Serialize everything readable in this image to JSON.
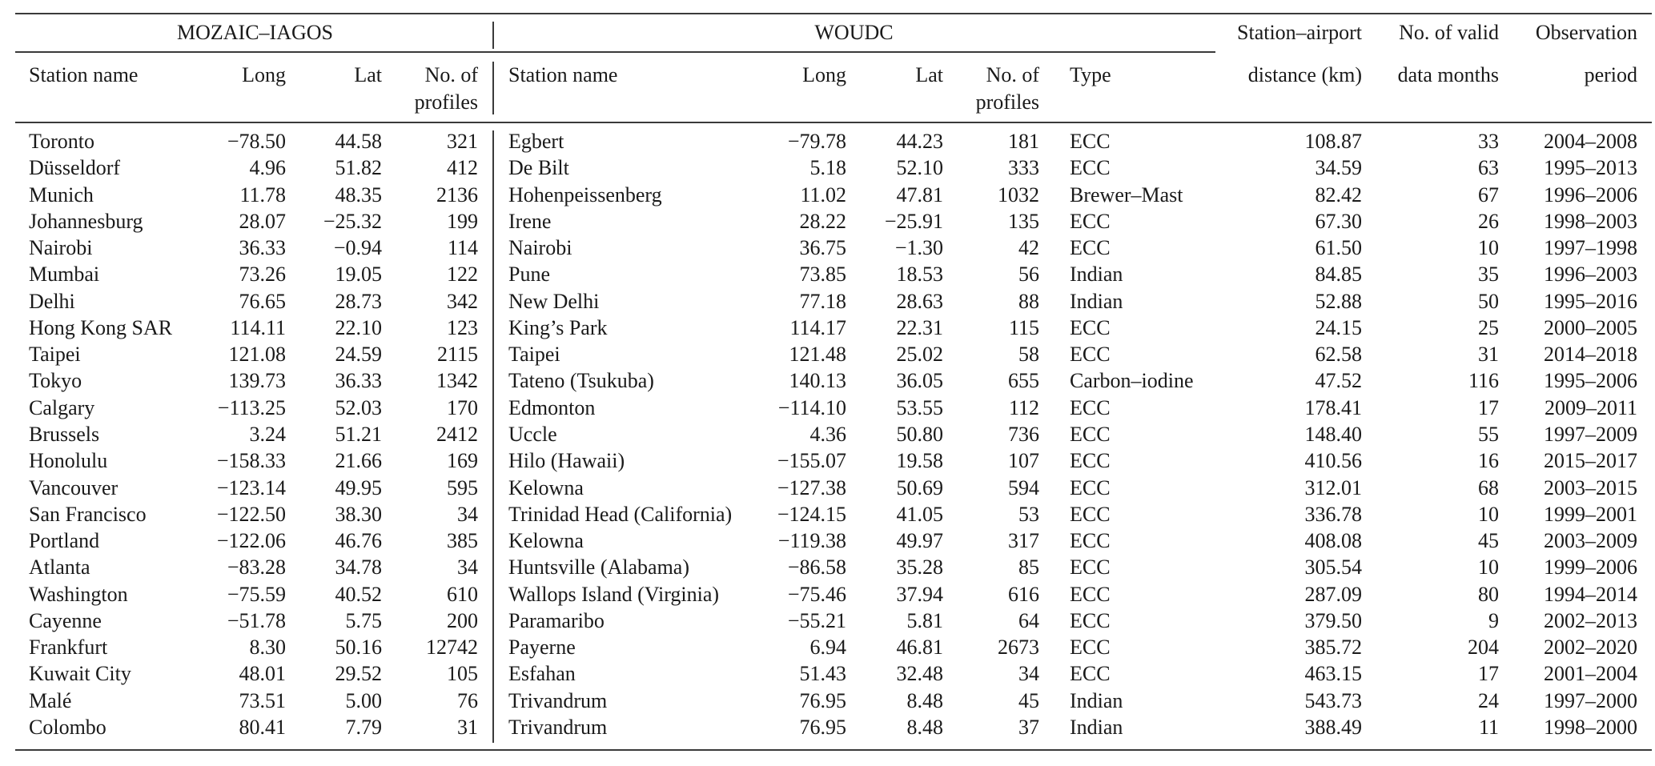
{
  "groups": {
    "mozaic": "MOZAIC–IAGOS",
    "woudc": "WOUDC"
  },
  "headers": {
    "mozaic_station": "Station name",
    "mozaic_long": "Long",
    "mozaic_lat": "Lat",
    "mozaic_profiles_1": "No. of",
    "mozaic_profiles_2": "profiles",
    "woudc_station": "Station name",
    "woudc_long": "Long",
    "woudc_lat": "Lat",
    "woudc_profiles_1": "No. of",
    "woudc_profiles_2": "profiles",
    "woudc_type": "Type",
    "distance_1": "Station–airport",
    "distance_2": "distance (km)",
    "months_1": "No. of valid",
    "months_2": "data months",
    "period_1": "Observation",
    "period_2": "period"
  },
  "rows": [
    [
      "Toronto",
      "−78.50",
      "44.58",
      "321",
      "Egbert",
      "−79.78",
      "44.23",
      "181",
      "ECC",
      "108.87",
      "33",
      "2004–2008"
    ],
    [
      "Düsseldorf",
      "4.96",
      "51.82",
      "412",
      "De Bilt",
      "5.18",
      "52.10",
      "333",
      "ECC",
      "34.59",
      "63",
      "1995–2013"
    ],
    [
      "Munich",
      "11.78",
      "48.35",
      "2136",
      "Hohenpeissenberg",
      "11.02",
      "47.81",
      "1032",
      "Brewer–Mast",
      "82.42",
      "67",
      "1996–2006"
    ],
    [
      "Johannesburg",
      "28.07",
      "−25.32",
      "199",
      "Irene",
      "28.22",
      "−25.91",
      "135",
      "ECC",
      "67.30",
      "26",
      "1998–2003"
    ],
    [
      "Nairobi",
      "36.33",
      "−0.94",
      "114",
      "Nairobi",
      "36.75",
      "−1.30",
      "42",
      "ECC",
      "61.50",
      "10",
      "1997–1998"
    ],
    [
      "Mumbai",
      "73.26",
      "19.05",
      "122",
      "Pune",
      "73.85",
      "18.53",
      "56",
      "Indian",
      "84.85",
      "35",
      "1996–2003"
    ],
    [
      "Delhi",
      "76.65",
      "28.73",
      "342",
      "New Delhi",
      "77.18",
      "28.63",
      "88",
      "Indian",
      "52.88",
      "50",
      "1995–2016"
    ],
    [
      "Hong Kong SAR",
      "114.11",
      "22.10",
      "123",
      "King’s Park",
      "114.17",
      "22.31",
      "115",
      "ECC",
      "24.15",
      "25",
      "2000–2005"
    ],
    [
      "Taipei",
      "121.08",
      "24.59",
      "2115",
      "Taipei",
      "121.48",
      "25.02",
      "58",
      "ECC",
      "62.58",
      "31",
      "2014–2018"
    ],
    [
      "Tokyo",
      "139.73",
      "36.33",
      "1342",
      "Tateno (Tsukuba)",
      "140.13",
      "36.05",
      "655",
      "Carbon–iodine",
      "47.52",
      "116",
      "1995–2006"
    ],
    [
      "Calgary",
      "−113.25",
      "52.03",
      "170",
      "Edmonton",
      "−114.10",
      "53.55",
      "112",
      "ECC",
      "178.41",
      "17",
      "2009–2011"
    ],
    [
      "Brussels",
      "3.24",
      "51.21",
      "2412",
      "Uccle",
      "4.36",
      "50.80",
      "736",
      "ECC",
      "148.40",
      "55",
      "1997–2009"
    ],
    [
      "Honolulu",
      "−158.33",
      "21.66",
      "169",
      "Hilo (Hawaii)",
      "−155.07",
      "19.58",
      "107",
      "ECC",
      "410.56",
      "16",
      "2015–2017"
    ],
    [
      "Vancouver",
      "−123.14",
      "49.95",
      "595",
      "Kelowna",
      "−127.38",
      "50.69",
      "594",
      "ECC",
      "312.01",
      "68",
      "2003–2015"
    ],
    [
      "San Francisco",
      "−122.50",
      "38.30",
      "34",
      "Trinidad Head (California)",
      "−124.15",
      "41.05",
      "53",
      "ECC",
      "336.78",
      "10",
      "1999–2001"
    ],
    [
      "Portland",
      "−122.06",
      "46.76",
      "385",
      "Kelowna",
      "−119.38",
      "49.97",
      "317",
      "ECC",
      "408.08",
      "45",
      "2003–2009"
    ],
    [
      "Atlanta",
      "−83.28",
      "34.78",
      "34",
      "Huntsville (Alabama)",
      "−86.58",
      "35.28",
      "85",
      "ECC",
      "305.54",
      "10",
      "1999–2006"
    ],
    [
      "Washington",
      "−75.59",
      "40.52",
      "610",
      "Wallops Island (Virginia)",
      "−75.46",
      "37.94",
      "616",
      "ECC",
      "287.09",
      "80",
      "1994–2014"
    ],
    [
      "Cayenne",
      "−51.78",
      "5.75",
      "200",
      "Paramaribo",
      "−55.21",
      "5.81",
      "64",
      "ECC",
      "379.50",
      "9",
      "2002–2013"
    ],
    [
      "Frankfurt",
      "8.30",
      "50.16",
      "12742",
      "Payerne",
      "6.94",
      "46.81",
      "2673",
      "ECC",
      "385.72",
      "204",
      "2002–2020"
    ],
    [
      "Kuwait City",
      "48.01",
      "29.52",
      "105",
      "Esfahan",
      "51.43",
      "32.48",
      "34",
      "ECC",
      "463.15",
      "17",
      "2001–2004"
    ],
    [
      "Malé",
      "73.51",
      "5.00",
      "76",
      "Trivandrum",
      "76.95",
      "8.48",
      "45",
      "Indian",
      "543.73",
      "24",
      "1997–2000"
    ],
    [
      "Colombo",
      "80.41",
      "7.79",
      "31",
      "Trivandrum",
      "76.95",
      "8.48",
      "37",
      "Indian",
      "388.49",
      "11",
      "1998–2000"
    ]
  ]
}
